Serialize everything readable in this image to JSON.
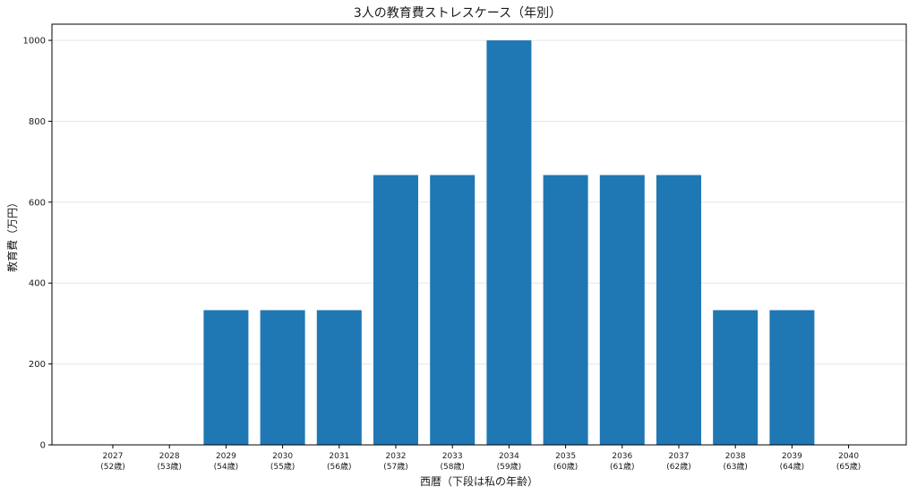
{
  "chart_data": {
    "type": "bar",
    "title": "3人の教育費ストレスケース（年別）",
    "xlabel": "西暦（下段は私の年齢）",
    "ylabel": "教育費（万円）",
    "categories": [
      "2027",
      "2028",
      "2029",
      "2030",
      "2031",
      "2032",
      "2033",
      "2034",
      "2035",
      "2036",
      "2037",
      "2038",
      "2039",
      "2040"
    ],
    "category_sublabels": [
      "(52歳)",
      "(53歳)",
      "(54歳)",
      "(55歳)",
      "(56歳)",
      "(57歳)",
      "(58歳)",
      "(59歳)",
      "(60歳)",
      "(61歳)",
      "(62歳)",
      "(63歳)",
      "(64歳)",
      "(65歳)"
    ],
    "values": [
      0,
      0,
      333,
      333,
      333,
      667,
      667,
      1000,
      667,
      667,
      667,
      333,
      333,
      0
    ],
    "ylim": [
      0,
      1040
    ],
    "yticks": [
      "0",
      "200",
      "400",
      "600",
      "800",
      "1000"
    ],
    "grid": "y",
    "bar_color": "#1f77b4"
  }
}
